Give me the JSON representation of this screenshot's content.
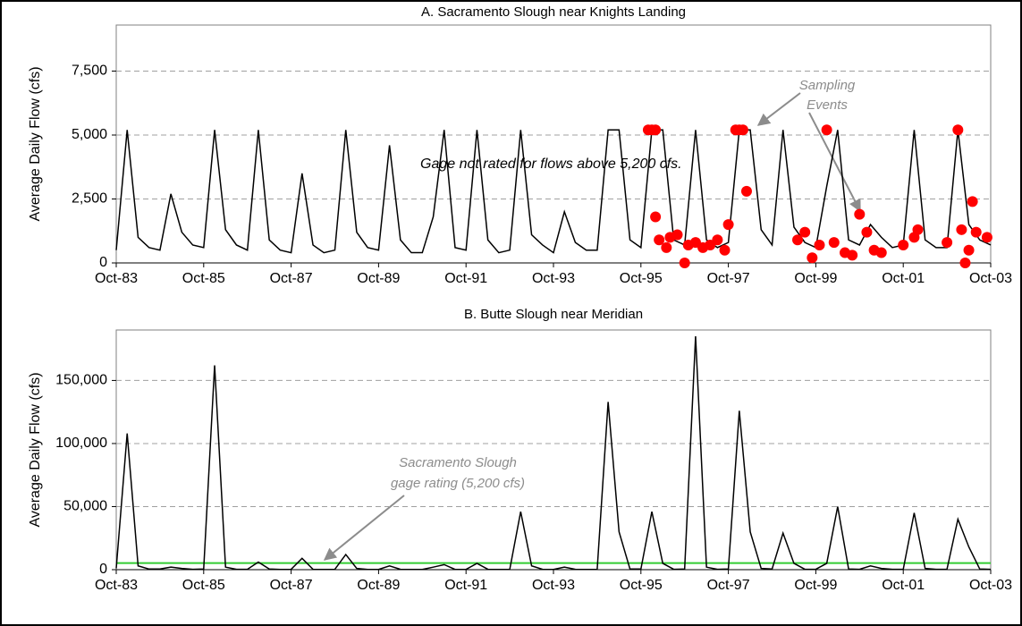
{
  "chart_data": [
    {
      "type": "line",
      "title": "A.  Sacramento Slough near Knights Landing",
      "y_label": "Average Daily Flow (cfs)",
      "annotations": [
        "Gage not rated for flows above 5,200 cfs.",
        "Sampling",
        "Events"
      ],
      "x": [
        "1983-10",
        "1984-01",
        "1984-04",
        "1984-07",
        "1984-10",
        "1985-01",
        "1985-04",
        "1985-07",
        "1985-10",
        "1986-01",
        "1986-04",
        "1986-07",
        "1986-10",
        "1987-01",
        "1987-04",
        "1987-07",
        "1987-10",
        "1988-01",
        "1988-04",
        "1988-07",
        "1988-10",
        "1989-01",
        "1989-04",
        "1989-07",
        "1989-10",
        "1990-01",
        "1990-04",
        "1990-07",
        "1990-10",
        "1991-01",
        "1991-04",
        "1991-07",
        "1991-10",
        "1992-01",
        "1992-04",
        "1992-07",
        "1992-10",
        "1993-01",
        "1993-04",
        "1993-07",
        "1993-10",
        "1994-01",
        "1994-04",
        "1994-07",
        "1994-10",
        "1995-01",
        "1995-04",
        "1995-07",
        "1995-10",
        "1996-01",
        "1996-04",
        "1996-07",
        "1996-10",
        "1997-01",
        "1997-04",
        "1997-07",
        "1997-10",
        "1998-01",
        "1998-04",
        "1998-07",
        "1998-10",
        "1999-01",
        "1999-04",
        "1999-07",
        "1999-10",
        "2000-01",
        "2000-04",
        "2000-07",
        "2000-10",
        "2001-01",
        "2001-04",
        "2001-07",
        "2001-10",
        "2002-01",
        "2002-04",
        "2002-07",
        "2002-10",
        "2003-01",
        "2003-04",
        "2003-07",
        "2003-10"
      ],
      "series": [
        {
          "color": "#000000",
          "values": [
            500,
            5200,
            1000,
            600,
            500,
            2700,
            1200,
            700,
            600,
            5200,
            1300,
            700,
            500,
            5200,
            900,
            500,
            400,
            3500,
            700,
            400,
            500,
            5200,
            1200,
            600,
            500,
            4600,
            900,
            400,
            400,
            1800,
            5200,
            600,
            500,
            5200,
            900,
            400,
            500,
            5200,
            1100,
            700,
            400,
            2000,
            800,
            500,
            500,
            5200,
            5200,
            900,
            600,
            5200,
            5200,
            900,
            700,
            5200,
            900,
            600,
            800,
            5200,
            5200,
            1300,
            700,
            5200,
            1400,
            800,
            600,
            3000,
            5200,
            900,
            700,
            1500,
            1000,
            600,
            700,
            5200,
            900,
            600,
            600,
            5200,
            1500,
            900,
            700
          ]
        }
      ],
      "points": {
        "color": "#ff0000",
        "x": [
          "1995-12",
          "1996-01",
          "1996-02",
          "1996-02",
          "1996-03",
          "1996-05",
          "1996-06",
          "1996-08",
          "1996-10",
          "1996-11",
          "1997-01",
          "1997-03",
          "1997-05",
          "1997-07",
          "1997-09",
          "1997-10",
          "1997-12",
          "1998-01",
          "1998-02",
          "1998-03",
          "1999-05",
          "1999-07",
          "1999-09",
          "1999-11",
          "2000-01",
          "2000-03",
          "2000-06",
          "2000-08",
          "2000-10",
          "2000-12",
          "2001-02",
          "2001-04",
          "2001-10",
          "2002-01",
          "2002-02",
          "2002-10",
          "2003-01",
          "2003-02",
          "2003-03",
          "2003-04",
          "2003-05",
          "2003-06",
          "2003-09"
        ],
        "values": [
          5200,
          5200,
          5200,
          1800,
          900,
          600,
          1000,
          1100,
          0,
          700,
          800,
          600,
          700,
          900,
          500,
          1500,
          5200,
          5200,
          5200,
          2800,
          900,
          1200,
          200,
          700,
          5200,
          800,
          400,
          300,
          1900,
          1200,
          500,
          400,
          700,
          1000,
          1300,
          800,
          5200,
          1300,
          0,
          500,
          2400,
          1200,
          1000
        ]
      },
      "xlim": [
        "1983-10",
        "2003-10"
      ],
      "xticks": [
        {
          "value": "1983-10",
          "label": "Oct-83"
        },
        {
          "value": "1985-10",
          "label": "Oct-85"
        },
        {
          "value": "1987-10",
          "label": "Oct-87"
        },
        {
          "value": "1989-10",
          "label": "Oct-89"
        },
        {
          "value": "1991-10",
          "label": "Oct-91"
        },
        {
          "value": "1993-10",
          "label": "Oct-93"
        },
        {
          "value": "1995-10",
          "label": "Oct-95"
        },
        {
          "value": "1997-10",
          "label": "Oct-97"
        },
        {
          "value": "1999-10",
          "label": "Oct-99"
        },
        {
          "value": "2001-10",
          "label": "Oct-01"
        },
        {
          "value": "2003-10",
          "label": "Oct-03"
        }
      ],
      "ylim": [
        0,
        9300
      ],
      "yticks": [
        0,
        {
          "value": 2500,
          "label": "2,500"
        },
        {
          "value": 5000,
          "label": "5,000"
        },
        {
          "value": 7500,
          "label": "7,500"
        }
      ],
      "grid": true
    },
    {
      "type": "line",
      "title": "B.  Butte Slough near Meridian",
      "y_label": "Average Daily Flow (cfs)",
      "annotations": [
        "Sacramento Slough",
        "gage rating (5,200 cfs)"
      ],
      "x": [
        "1983-10",
        "1984-01",
        "1984-04",
        "1984-07",
        "1984-10",
        "1985-01",
        "1985-04",
        "1985-07",
        "1985-10",
        "1986-01",
        "1986-04",
        "1986-07",
        "1986-10",
        "1987-01",
        "1987-04",
        "1987-07",
        "1987-10",
        "1988-01",
        "1988-04",
        "1988-07",
        "1988-10",
        "1989-01",
        "1989-04",
        "1989-07",
        "1989-10",
        "1990-01",
        "1990-04",
        "1990-07",
        "1990-10",
        "1991-01",
        "1991-04",
        "1991-07",
        "1991-10",
        "1992-01",
        "1992-04",
        "1992-07",
        "1992-10",
        "1993-01",
        "1993-04",
        "1993-07",
        "1993-10",
        "1994-01",
        "1994-04",
        "1994-07",
        "1994-10",
        "1995-01",
        "1995-04",
        "1995-07",
        "1995-10",
        "1996-01",
        "1996-04",
        "1996-07",
        "1996-10",
        "1997-01",
        "1997-04",
        "1997-07",
        "1997-10",
        "1998-01",
        "1998-04",
        "1998-07",
        "1998-10",
        "1999-01",
        "1999-04",
        "1999-07",
        "1999-10",
        "2000-01",
        "2000-04",
        "2000-07",
        "2000-10",
        "2001-01",
        "2001-04",
        "2001-07",
        "2001-10",
        "2002-01",
        "2002-04",
        "2002-07",
        "2002-10",
        "2003-01",
        "2003-04",
        "2003-07",
        "2003-10"
      ],
      "series": [
        {
          "color": "#000000",
          "values": [
            1000,
            108000,
            3000,
            500,
            500,
            2000,
            1000,
            300,
            500,
            162000,
            2000,
            300,
            300,
            6000,
            500,
            200,
            300,
            9000,
            300,
            200,
            300,
            12000,
            1000,
            200,
            200,
            3000,
            300,
            200,
            200,
            2000,
            4000,
            200,
            200,
            5000,
            300,
            200,
            200,
            46000,
            3000,
            300,
            200,
            2000,
            300,
            200,
            300,
            133000,
            30000,
            500,
            500,
            46000,
            5000,
            300,
            500,
            185000,
            2000,
            300,
            500,
            126000,
            30000,
            1000,
            500,
            29000,
            5000,
            300,
            300,
            5000,
            50000,
            500,
            300,
            3000,
            1000,
            300,
            300,
            45000,
            1000,
            300,
            300,
            40000,
            18000,
            500,
            300
          ]
        }
      ],
      "reference_line": {
        "value": 5200,
        "color": "#33cc33"
      },
      "xlim": [
        "1983-10",
        "2003-10"
      ],
      "xticks": [
        {
          "value": "1983-10",
          "label": "Oct-83"
        },
        {
          "value": "1985-10",
          "label": "Oct-85"
        },
        {
          "value": "1987-10",
          "label": "Oct-87"
        },
        {
          "value": "1989-10",
          "label": "Oct-89"
        },
        {
          "value": "1991-10",
          "label": "Oct-91"
        },
        {
          "value": "1993-10",
          "label": "Oct-93"
        },
        {
          "value": "1995-10",
          "label": "Oct-95"
        },
        {
          "value": "1997-10",
          "label": "Oct-97"
        },
        {
          "value": "1999-10",
          "label": "Oct-99"
        },
        {
          "value": "2001-10",
          "label": "Oct-01"
        },
        {
          "value": "2003-10",
          "label": "Oct-03"
        }
      ],
      "ylim": [
        0,
        190000
      ],
      "yticks": [
        0,
        {
          "value": 50000,
          "label": "50,000"
        },
        {
          "value": 100000,
          "label": "100,000"
        },
        {
          "value": 150000,
          "label": "150,000"
        }
      ],
      "grid": true
    }
  ]
}
